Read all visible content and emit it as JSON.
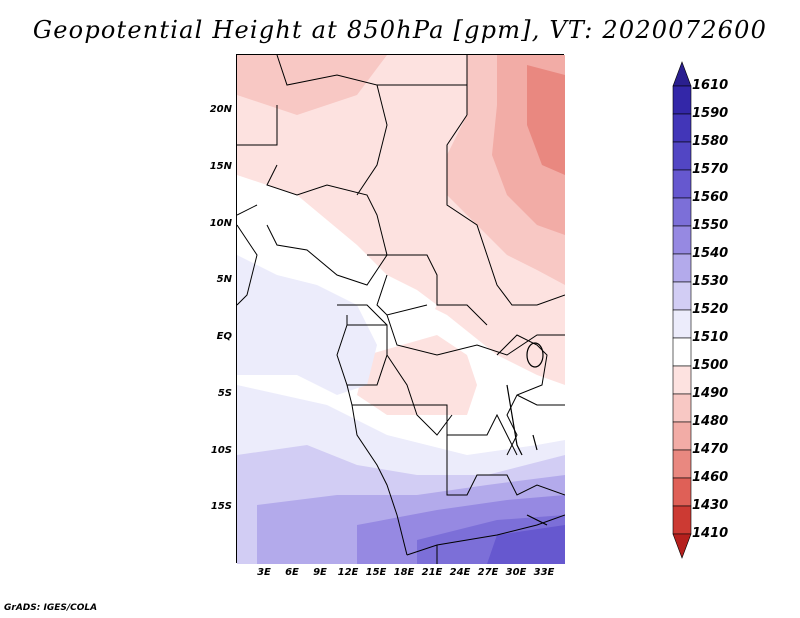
{
  "title": "Geopotential Height at 850hPa [gpm], VT: 2020072600",
  "footer": "GrADS: IGES/COLA",
  "map": {
    "variable": "Geopotential Height at 850hPa",
    "units": "gpm",
    "valid_time": "2020072600",
    "lat_ticks": [
      "20N",
      "15N",
      "10N",
      "5N",
      "EQ",
      "5S",
      "10S",
      "15S"
    ],
    "lon_ticks": [
      "3E",
      "6E",
      "9E",
      "12E",
      "15E",
      "18E",
      "21E",
      "24E",
      "27E",
      "30E",
      "33E"
    ],
    "lon_range": [
      0,
      35
    ],
    "lat_range": [
      -20,
      25
    ]
  },
  "colorbar": {
    "labels": [
      "1610",
      "1590",
      "1580",
      "1570",
      "1560",
      "1550",
      "1540",
      "1530",
      "1520",
      "1510",
      "1500",
      "1490",
      "1480",
      "1470",
      "1460",
      "1430",
      "1410"
    ],
    "colors": [
      "#2a1f8f",
      "#3327a8",
      "#4236b8",
      "#5246c4",
      "#6658cf",
      "#7c6fd8",
      "#9689e2",
      "#b3aaeb",
      "#d2cdf4",
      "#ececfb",
      "#ffffff",
      "#fde2e0",
      "#f8c8c4",
      "#f2aca6",
      "#e98880",
      "#df6057",
      "#cc3a33",
      "#b5201d"
    ]
  },
  "colors": {
    "high": "#2a1f8f",
    "low": "#b5201d",
    "neutral": "#ffffff"
  }
}
